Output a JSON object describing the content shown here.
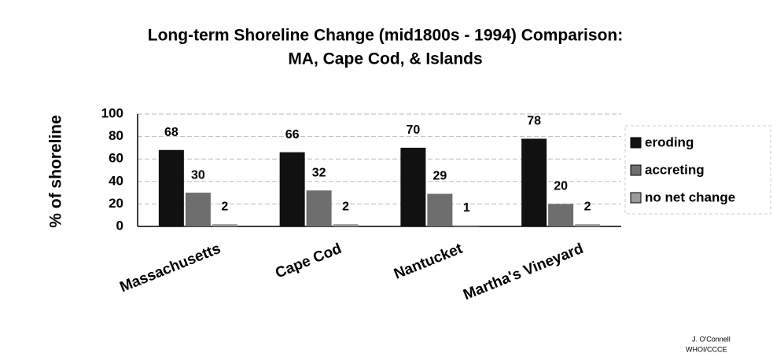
{
  "chart_data": {
    "type": "bar",
    "title": [
      "Long-term Shoreline Change (mid1800s - 1994) Comparison:",
      "MA,  Cape Cod, & Islands"
    ],
    "y_label": "% of shoreline",
    "categories": [
      "Massachusetts",
      "Cape Cod",
      "Nantucket",
      "Martha's Vineyard"
    ],
    "series": [
      {
        "name": "eroding",
        "color": "#111111",
        "values": [
          68,
          66,
          70,
          78
        ]
      },
      {
        "name": "accreting",
        "color": "#6e6e6e",
        "values": [
          30,
          32,
          29,
          20
        ]
      },
      {
        "name": "no net change",
        "color": "#9a9a9a",
        "values": [
          2,
          2,
          1,
          2
        ]
      }
    ],
    "ylim": [
      0,
      100
    ],
    "yticks": [
      0,
      20,
      40,
      60,
      80,
      100
    ],
    "grid": true,
    "legend": "right",
    "annotations": [
      "J. O'Connell",
      "WHOI/CCCE"
    ]
  }
}
